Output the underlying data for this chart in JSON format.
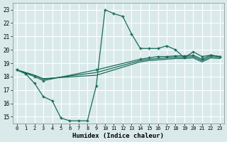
{
  "xlabel": "Humidex (Indice chaleur)",
  "bg_color": "#daeaea",
  "grid_color": "#ffffff",
  "line_color": "#1a6b5a",
  "xlim": [
    -0.5,
    23.5
  ],
  "ylim": [
    14.5,
    23.5
  ],
  "xticks": [
    0,
    1,
    2,
    3,
    4,
    5,
    6,
    7,
    8,
    9,
    10,
    11,
    12,
    13,
    14,
    15,
    16,
    17,
    18,
    19,
    20,
    21,
    22,
    23
  ],
  "yticks": [
    15,
    16,
    17,
    18,
    19,
    20,
    21,
    22,
    23
  ],
  "line1_x": [
    0,
    1,
    2,
    3,
    4,
    5,
    6,
    7,
    8,
    9,
    10,
    11,
    12,
    13,
    14,
    15,
    16,
    17,
    18,
    19,
    20,
    21,
    22,
    23
  ],
  "line1_y": [
    18.5,
    18.2,
    17.5,
    16.5,
    16.2,
    14.9,
    14.7,
    14.7,
    14.7,
    17.3,
    23.0,
    22.7,
    22.5,
    21.2,
    20.1,
    20.1,
    20.1,
    20.3,
    20.0,
    19.4,
    19.85,
    19.5,
    19.6,
    19.5
  ],
  "line2_x": [
    0,
    2,
    3,
    9,
    14,
    15,
    16,
    17,
    18,
    19,
    20,
    21,
    22,
    23
  ],
  "line2_y": [
    18.5,
    18.0,
    17.7,
    18.5,
    19.3,
    19.4,
    19.5,
    19.5,
    19.55,
    19.55,
    19.6,
    19.3,
    19.6,
    19.5
  ],
  "line3_x": [
    0,
    2,
    3,
    9,
    14,
    15,
    16,
    17,
    18,
    19,
    20,
    21,
    22,
    23
  ],
  "line3_y": [
    18.5,
    18.1,
    17.8,
    18.3,
    19.2,
    19.3,
    19.35,
    19.4,
    19.45,
    19.45,
    19.5,
    19.2,
    19.5,
    19.45
  ],
  "line4_x": [
    0,
    2,
    3,
    9,
    14,
    15,
    16,
    17,
    18,
    19,
    20,
    21,
    22,
    23
  ],
  "line4_y": [
    18.5,
    18.1,
    17.85,
    18.1,
    19.1,
    19.2,
    19.25,
    19.3,
    19.35,
    19.35,
    19.4,
    19.1,
    19.4,
    19.35
  ]
}
